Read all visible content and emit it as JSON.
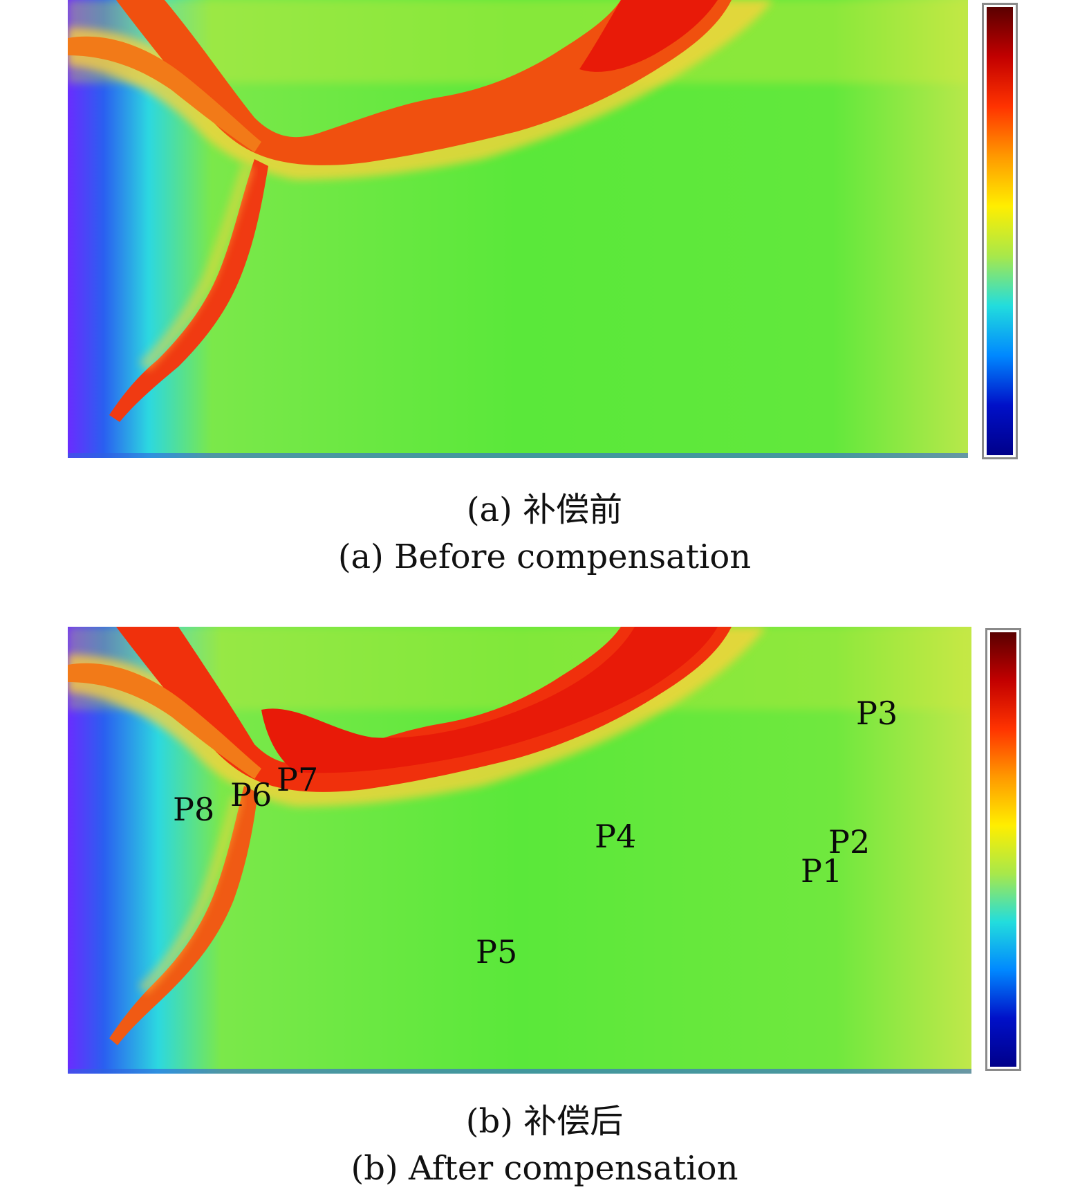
{
  "figure": {
    "panel_a": {
      "caption_cn": "(a) 补偿前",
      "caption_en": "(a) Before compensation"
    },
    "panel_b": {
      "caption_cn": "(b) 补偿后",
      "caption_en": "(b) After compensation",
      "point_labels": [
        "P1",
        "P2",
        "P3",
        "P4",
        "P5",
        "P6",
        "P7",
        "P8"
      ]
    },
    "colormap": [
      "#5a0000",
      "#c20000",
      "#ff3300",
      "#ff9900",
      "#ffee00",
      "#a8e84a",
      "#22dddd",
      "#0088ff",
      "#0010c8",
      "#00008a"
    ],
    "colors": {
      "background_green": "#66e83a",
      "ridge_red": "#f53a10",
      "low_blue": "#2c7de8",
      "edge_purple": "#6a2cff"
    }
  }
}
